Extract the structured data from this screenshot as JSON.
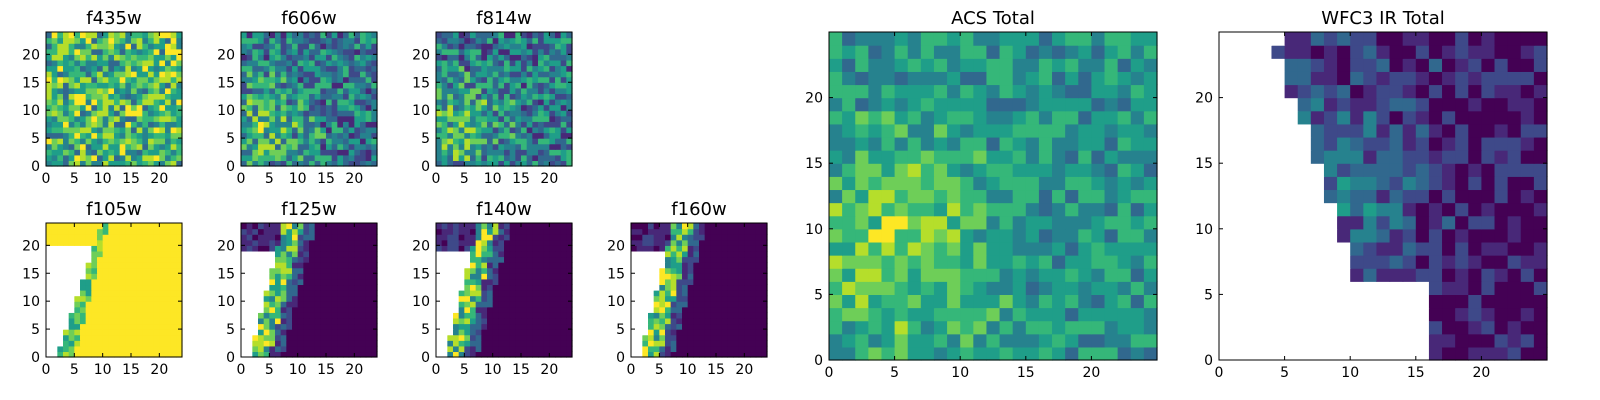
{
  "chart_data": [
    {
      "type": "heatmap",
      "title": "f435w",
      "xticks": [
        0,
        5,
        10,
        15,
        20
      ],
      "yticks": [
        0,
        5,
        10,
        15,
        20
      ],
      "xlim": [
        0,
        24
      ],
      "ylim": [
        0,
        24
      ],
      "grid_n": 24,
      "pattern": "noise_high"
    },
    {
      "type": "heatmap",
      "title": "f606w",
      "xticks": [
        0,
        5,
        10,
        15,
        20
      ],
      "yticks": [
        0,
        5,
        10,
        15,
        20
      ],
      "xlim": [
        0,
        24
      ],
      "ylim": [
        0,
        24
      ],
      "grid_n": 24,
      "pattern": "noise_blob"
    },
    {
      "type": "heatmap",
      "title": "f814w",
      "xticks": [
        0,
        5,
        10,
        15,
        20
      ],
      "yticks": [
        0,
        5,
        10,
        15,
        20
      ],
      "xlim": [
        0,
        24
      ],
      "ylim": [
        0,
        24
      ],
      "grid_n": 24,
      "pattern": "noise_blob"
    },
    {
      "type": "heatmap",
      "title": "f105w",
      "xticks": [
        0,
        5,
        10,
        15,
        20
      ],
      "yticks": [
        0,
        5,
        10,
        15,
        20
      ],
      "xlim": [
        0,
        24
      ],
      "ylim": [
        0,
        24
      ],
      "grid_n": 24,
      "pattern": "ir_bright"
    },
    {
      "type": "heatmap",
      "title": "f125w",
      "xticks": [
        0,
        5,
        10,
        15,
        20
      ],
      "yticks": [
        0,
        5,
        10,
        15,
        20
      ],
      "xlim": [
        0,
        24
      ],
      "ylim": [
        0,
        24
      ],
      "grid_n": 24,
      "pattern": "ir_dark"
    },
    {
      "type": "heatmap",
      "title": "f140w",
      "xticks": [
        0,
        5,
        10,
        15,
        20
      ],
      "yticks": [
        0,
        5,
        10,
        15,
        20
      ],
      "xlim": [
        0,
        24
      ],
      "ylim": [
        0,
        24
      ],
      "grid_n": 24,
      "pattern": "ir_dark"
    },
    {
      "type": "heatmap",
      "title": "f160w",
      "xticks": [
        0,
        5,
        10,
        15,
        20
      ],
      "yticks": [
        0,
        5,
        10,
        15,
        20
      ],
      "xlim": [
        0,
        24
      ],
      "ylim": [
        0,
        24
      ],
      "grid_n": 24,
      "pattern": "ir_dark"
    },
    {
      "type": "heatmap",
      "title": "ACS Total",
      "xticks": [
        0,
        5,
        10,
        15,
        20
      ],
      "yticks": [
        0,
        5,
        10,
        15,
        20
      ],
      "xlim": [
        0,
        25
      ],
      "ylim": [
        0,
        25
      ],
      "grid_n": 25,
      "pattern": "acs_total"
    },
    {
      "type": "heatmap",
      "title": "WFC3 IR Total",
      "xticks": [
        0,
        5,
        10,
        15,
        20
      ],
      "yticks": [
        0,
        5,
        10,
        15,
        20
      ],
      "xlim": [
        0,
        25
      ],
      "ylim": [
        0,
        25
      ],
      "grid_n": 25,
      "pattern": "ir_total"
    }
  ],
  "colormap": [
    "#440154",
    "#482878",
    "#3e4989",
    "#31688e",
    "#26828e",
    "#1f9e89",
    "#35b779",
    "#6ece58",
    "#b5de2b",
    "#fde725"
  ],
  "mask_color": "#ffffff"
}
